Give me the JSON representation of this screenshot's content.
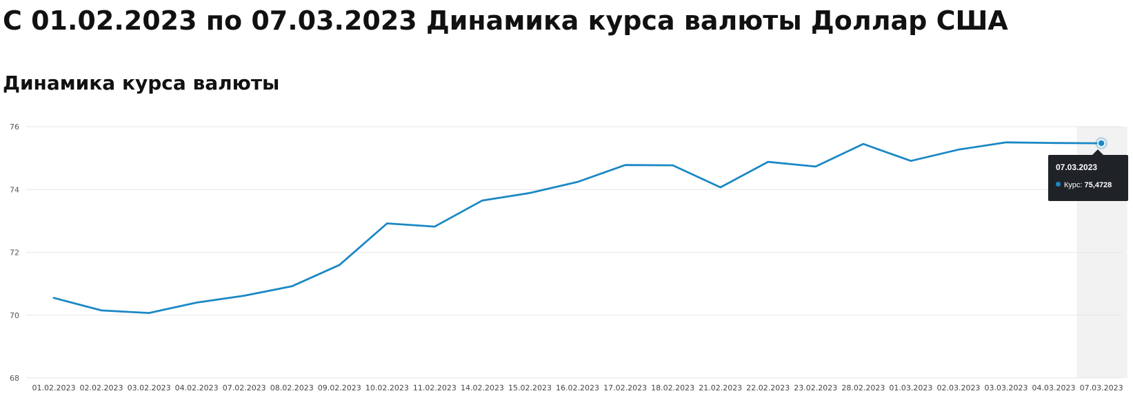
{
  "page": {
    "title": "С 01.02.2023 по 07.03.2023 Динамика курса валюты Доллар США",
    "section_title": "Динамика курса валюты"
  },
  "tooltip": {
    "date": "07.03.2023",
    "label": "Курс:",
    "value": "75,4728"
  },
  "colors": {
    "line": "#1a88c4",
    "highlight_band": "#f2f2f2",
    "grid": "#e6e6e6",
    "tooltip_bg": "#1f2328"
  },
  "chart_data": {
    "type": "line",
    "title": "",
    "xlabel": "",
    "ylabel": "",
    "ylim": [
      68,
      76
    ],
    "yticks": [
      68,
      70,
      72,
      74,
      76
    ],
    "grid": true,
    "highlighted_category": "07.03.2023",
    "categories": [
      "01.02.2023",
      "02.02.2023",
      "03.02.2023",
      "04.02.2023",
      "07.02.2023",
      "08.02.2023",
      "09.02.2023",
      "10.02.2023",
      "11.02.2023",
      "14.02.2023",
      "15.02.2023",
      "16.02.2023",
      "17.02.2023",
      "18.02.2023",
      "21.02.2023",
      "22.02.2023",
      "23.02.2023",
      "28.02.2023",
      "01.03.2023",
      "02.03.2023",
      "03.03.2023",
      "04.03.2023",
      "07.03.2023"
    ],
    "series": [
      {
        "name": "Курс",
        "values": [
          70.55,
          70.15,
          70.07,
          70.4,
          70.62,
          70.92,
          71.6,
          72.92,
          72.82,
          73.65,
          73.89,
          74.24,
          74.78,
          74.77,
          74.07,
          74.88,
          74.73,
          75.45,
          74.91,
          75.27,
          75.5,
          75.48,
          75.4728
        ]
      }
    ]
  }
}
